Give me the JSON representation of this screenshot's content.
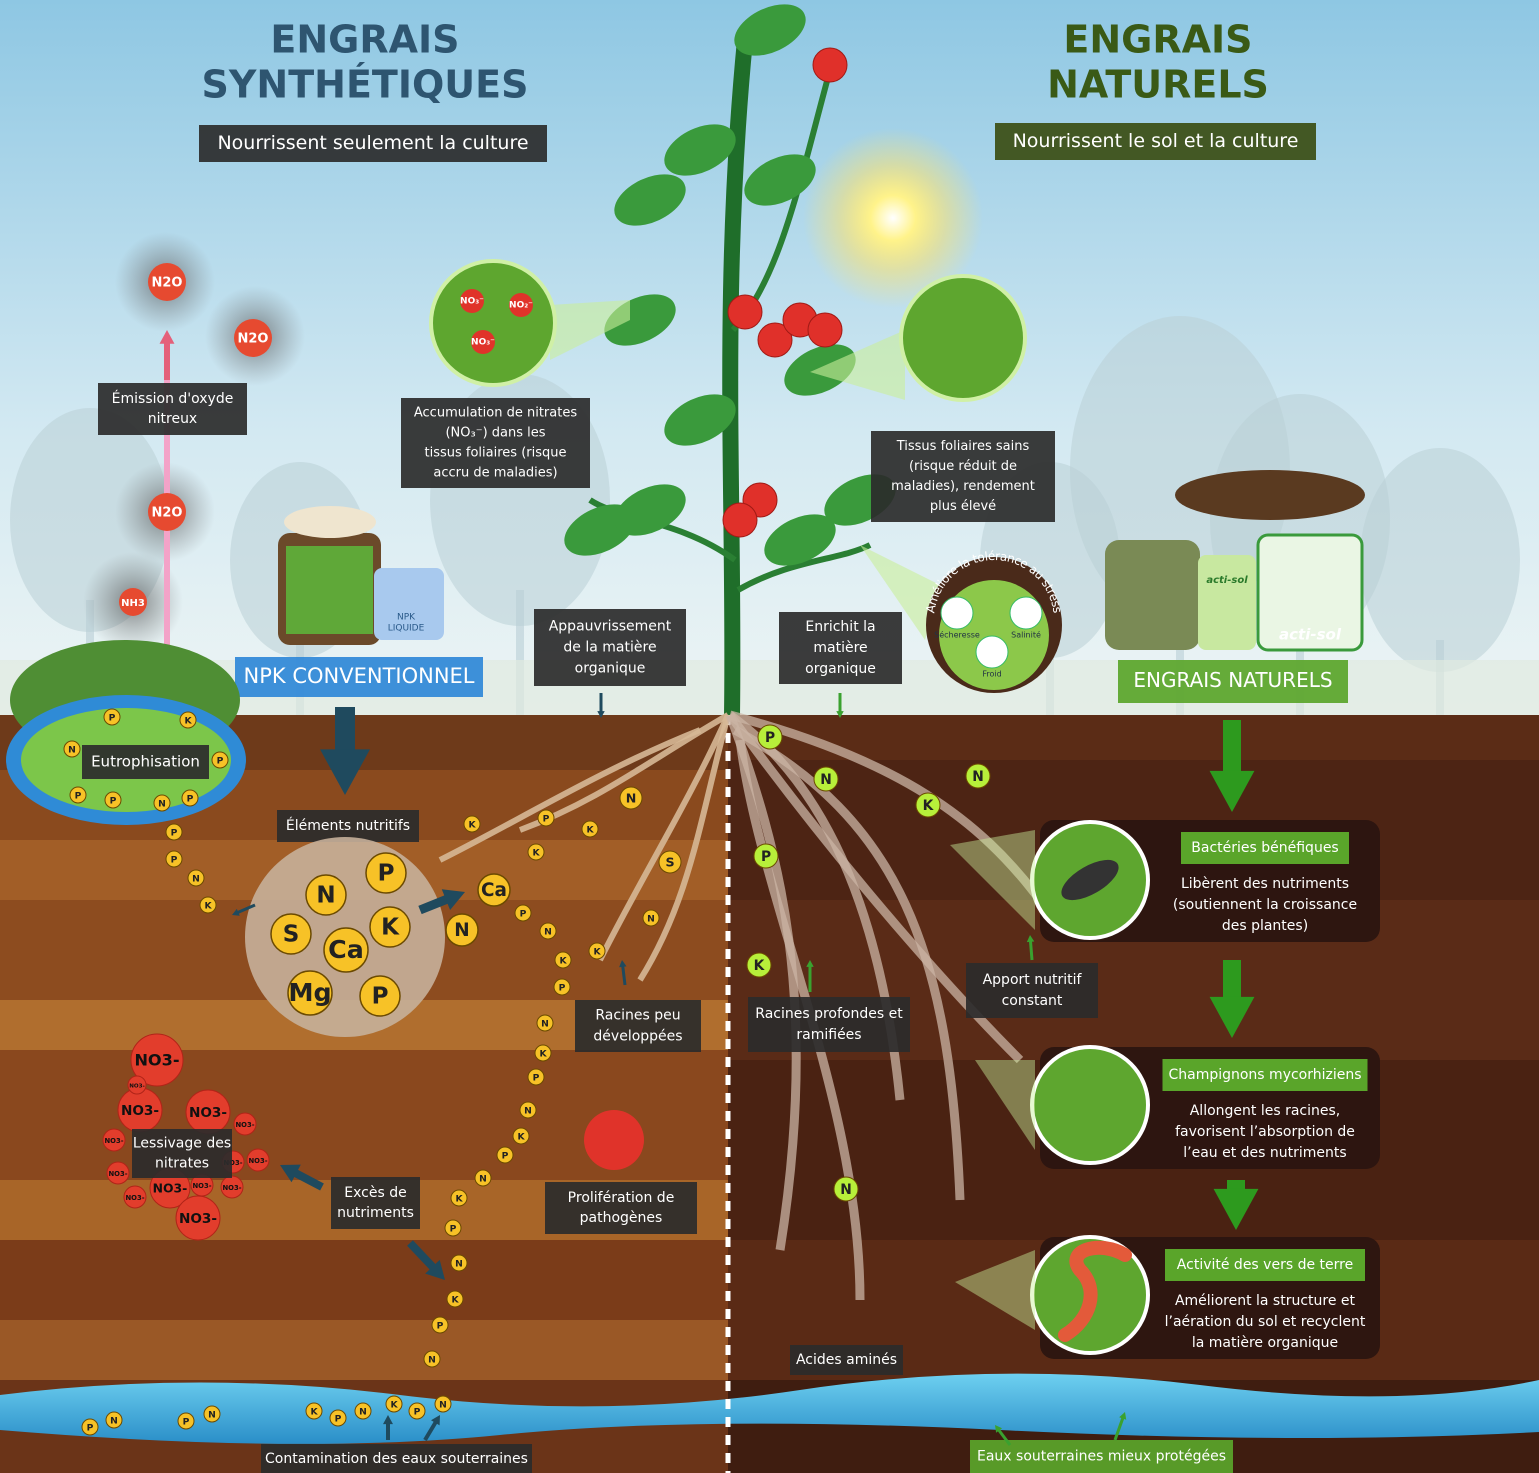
{
  "left": {
    "title": [
      "ENGRAIS",
      "SYNTHÉTIQUES"
    ],
    "subtitle": "Nourrissent seulement la culture",
    "n2o": [
      "N2O",
      "N2O",
      "N2O"
    ],
    "nh3": "NH3",
    "emission_label": [
      "Émission d'oxyde",
      "nitreux"
    ],
    "nitrate_ions_leaf": [
      "NO₃⁻",
      "NO₂⁻",
      "NO₃⁻"
    ],
    "nitrate_note": [
      "Accumulation de nitrates",
      "(NO₃⁻) dans les",
      "tissus foliaires (risque",
      "accru de maladies)"
    ],
    "npk_liquid": [
      "NPK",
      "LIQUIDE"
    ],
    "npk_label": "NPK CONVENTIONNEL",
    "organic_loss": [
      "Appauvrissement",
      "de la matière",
      "organique"
    ],
    "eutrophication": "Eutrophisation",
    "nutrients_label": "Éléments nutritifs",
    "nutrient_ball": [
      "N",
      "P",
      "S",
      "Ca",
      "K",
      "Mg",
      "P"
    ],
    "root_big": [
      "Ca",
      "N"
    ],
    "root_note": [
      "Racines peu",
      "développées"
    ],
    "leaching": [
      "Lessivage des",
      "nitrates"
    ],
    "excess": [
      "Excès de",
      "nutriments"
    ],
    "pathogens": [
      "Prolifération de",
      "pathogènes"
    ],
    "contamination": "Contamination des eaux souterraines",
    "nitrate_ions": [
      "NO3-",
      "NO3-",
      "NO3-",
      "NO3-",
      "NO3-",
      "NO3-",
      "NO3-",
      "NO3-",
      "NO3-",
      "NO3-",
      "NO3-",
      "NO3-",
      "NO3-",
      "NO3-"
    ],
    "nutrient_dots": [
      "P",
      "K",
      "N",
      "P",
      "P",
      "P",
      "N",
      "P",
      "P",
      "P",
      "N",
      "K",
      "K",
      "P",
      "K",
      "N",
      "K",
      "S",
      "P",
      "N",
      "N",
      "K",
      "K",
      "P",
      "N",
      "K",
      "P",
      "N",
      "K",
      "P",
      "N",
      "K",
      "P",
      "N",
      "K",
      "P",
      "N",
      "P",
      "N",
      "P",
      "N",
      "K",
      "P",
      "N",
      "K",
      "P",
      "N"
    ]
  },
  "right": {
    "title": [
      "ENGRAIS",
      "NATURELS"
    ],
    "subtitle": "Nourrissent le sol et la culture",
    "leaf_note": [
      "Tissus foliaires sains",
      "(risque réduit de",
      "maladies), rendement",
      "plus élevé"
    ],
    "stress_title": "Améliore la tolérance au stress",
    "stress_items": [
      "Sécheresse",
      "Salinité",
      "Froid"
    ],
    "organic_gain": [
      "Enrichit la",
      "matière",
      "organique"
    ],
    "brand": [
      "acti-sol",
      "acti-sol"
    ],
    "natural_label": "ENGRAIS NATURELS",
    "bacteria_title": "Bactéries bénéfiques",
    "bacteria_text": [
      "Libèrent des nutriments",
      "(soutiennent la croissance",
      "des plantes)"
    ],
    "constant_supply": [
      "Apport nutritif",
      "constant"
    ],
    "deep_roots": [
      "Racines profondes et",
      "ramifiées"
    ],
    "fungi_title": "Champignons mycorhiziens",
    "fungi_text": [
      "Allongent les racines,",
      "favorisent l’absorption de",
      "l’eau et des nutriments"
    ],
    "worms_title": "Activité des vers de terre",
    "worms_text": [
      "Améliorent la structure et",
      "l’aération du sol et recyclent",
      "la matière organique"
    ],
    "amino": "Acides aminés",
    "groundwater": "Eaux souterraines mieux protégées",
    "nutrient_dots": [
      "P",
      "N",
      "N",
      "K",
      "P",
      "K",
      "N"
    ]
  }
}
